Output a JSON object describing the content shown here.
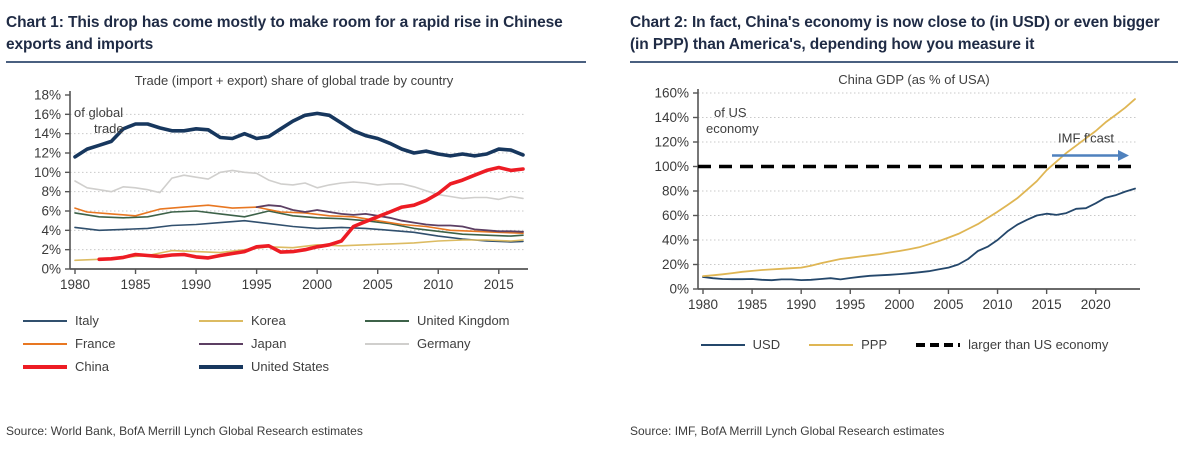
{
  "panels": [
    {
      "heading": "Chart 1: This drop has come mostly to make room for a rapid rise in Chinese exports and imports",
      "source": "Source: World Bank, BofA Merrill Lynch Global Research estimates"
    },
    {
      "heading": "Chart 2: In fact, China's economy is now close to (in USD) or even bigger (in PPP) than America's, depending how you measure it",
      "source": "Source: IMF, BofA Merrill Lynch Global Research estimates"
    }
  ],
  "colors": {
    "heading_text": "#1f2b45",
    "heading_rule": "#4a6080",
    "axis": "#555555",
    "grid": "#c9c9c9",
    "tick_text": "#3a3a3a",
    "chart_text": "#3f3f3f",
    "arrow_blue": "#4f81bd"
  },
  "chart_data": [
    {
      "type": "line",
      "title": "Trade (import + export) share of global trade by country",
      "ylabel_lines": [
        "of global",
        "trade"
      ],
      "ylim": [
        0,
        18
      ],
      "yticks": [
        0,
        2,
        4,
        6,
        8,
        10,
        12,
        14,
        16,
        18
      ],
      "gridlines": [
        2,
        4,
        6,
        8,
        10,
        12,
        14,
        16
      ],
      "ytick_suffix": "%",
      "xlim": [
        1980,
        2017
      ],
      "xticks": [
        1980,
        1985,
        1990,
        1995,
        2000,
        2005,
        2010,
        2015
      ],
      "grid_style": "dotted horizontal",
      "legend_position": "below, 3 columns",
      "series": [
        {
          "name": "Italy",
          "color": "#31506e",
          "width": 1.6,
          "x": [
            1980,
            1982,
            1984,
            1986,
            1988,
            1990,
            1992,
            1994,
            1996,
            1998,
            2000,
            2002,
            2004,
            2006,
            2008,
            2010,
            2012,
            2014,
            2016,
            2017
          ],
          "y": [
            4.3,
            4.0,
            4.1,
            4.2,
            4.5,
            4.6,
            4.8,
            5.0,
            4.7,
            4.4,
            4.2,
            4.3,
            4.2,
            4.0,
            3.8,
            3.4,
            3.1,
            2.9,
            2.8,
            2.85
          ]
        },
        {
          "name": "Korea",
          "color": "#dcbb62",
          "width": 1.6,
          "x": [
            1980,
            1982,
            1984,
            1986,
            1988,
            1990,
            1992,
            1994,
            1996,
            1998,
            2000,
            2002,
            2004,
            2006,
            2008,
            2010,
            2012,
            2014,
            2016,
            2017
          ],
          "y": [
            0.9,
            1.0,
            1.2,
            1.4,
            1.9,
            1.8,
            1.7,
            2.0,
            2.3,
            2.2,
            2.5,
            2.4,
            2.5,
            2.6,
            2.7,
            2.9,
            3.0,
            3.0,
            2.9,
            3.0
          ]
        },
        {
          "name": "United Kingdom",
          "color": "#3d6249",
          "width": 1.6,
          "x": [
            1980,
            1982,
            1984,
            1986,
            1988,
            1990,
            1992,
            1994,
            1996,
            1998,
            2000,
            2002,
            2004,
            2006,
            2008,
            2010,
            2012,
            2014,
            2016,
            2017
          ],
          "y": [
            5.8,
            5.4,
            5.3,
            5.4,
            5.9,
            6.0,
            5.7,
            5.4,
            6.0,
            5.5,
            5.3,
            5.2,
            5.0,
            4.7,
            4.2,
            3.9,
            3.6,
            3.5,
            3.4,
            3.5
          ]
        },
        {
          "name": "France",
          "color": "#e87722",
          "width": 1.6,
          "x": [
            1980,
            1981,
            1983,
            1985,
            1987,
            1989,
            1991,
            1993,
            1995,
            1997,
            1999,
            2001,
            2003,
            2005,
            2007,
            2009,
            2011,
            2013,
            2015,
            2017
          ],
          "y": [
            6.3,
            5.9,
            5.7,
            5.5,
            6.2,
            6.4,
            6.6,
            6.3,
            6.4,
            5.9,
            5.8,
            5.5,
            5.4,
            5.0,
            4.6,
            4.4,
            4.0,
            3.9,
            3.8,
            3.7
          ]
        },
        {
          "name": "Japan",
          "color": "#5c3f63",
          "width": 1.8,
          "x": [
            1995,
            1996,
            1997,
            1998,
            1999,
            2000,
            2001,
            2002,
            2003,
            2004,
            2005,
            2006,
            2007,
            2008,
            2009,
            2010,
            2011,
            2012,
            2013,
            2014,
            2015,
            2016,
            2017
          ],
          "y": [
            6.4,
            6.6,
            6.5,
            6.1,
            5.9,
            6.1,
            5.9,
            5.7,
            5.6,
            5.7,
            5.5,
            5.3,
            5.0,
            4.8,
            4.6,
            4.5,
            4.5,
            4.4,
            4.1,
            4.0,
            3.9,
            3.9,
            3.85
          ]
        },
        {
          "name": "Germany",
          "color": "#d0cfcd",
          "width": 1.6,
          "x": [
            1980,
            1981,
            1982,
            1983,
            1984,
            1985,
            1986,
            1987,
            1988,
            1989,
            1990,
            1991,
            1992,
            1993,
            1994,
            1995,
            1996,
            1997,
            1998,
            1999,
            2000,
            2001,
            2002,
            2003,
            2004,
            2005,
            2006,
            2007,
            2008,
            2009,
            2010,
            2011,
            2012,
            2013,
            2014,
            2015,
            2016,
            2017
          ],
          "y": [
            9.1,
            8.4,
            8.2,
            8.0,
            8.5,
            8.4,
            8.2,
            7.9,
            9.4,
            9.7,
            9.5,
            9.3,
            10.0,
            10.2,
            10.0,
            9.9,
            9.2,
            8.8,
            8.7,
            8.9,
            8.4,
            8.7,
            8.9,
            9.0,
            8.9,
            8.7,
            8.8,
            8.8,
            8.5,
            8.1,
            7.7,
            7.5,
            7.3,
            7.4,
            7.4,
            7.2,
            7.5,
            7.3
          ]
        },
        {
          "name": "China",
          "color": "#ed1c24",
          "width": 3.6,
          "x": [
            1982,
            1983,
            1984,
            1985,
            1986,
            1987,
            1988,
            1989,
            1990,
            1991,
            1992,
            1993,
            1994,
            1995,
            1996,
            1997,
            1998,
            1999,
            2000,
            2001,
            2002,
            2003,
            2004,
            2005,
            2006,
            2007,
            2008,
            2009,
            2010,
            2011,
            2012,
            2013,
            2014,
            2015,
            2016,
            2017
          ],
          "y": [
            1.0,
            1.05,
            1.2,
            1.5,
            1.4,
            1.3,
            1.45,
            1.5,
            1.25,
            1.15,
            1.4,
            1.6,
            1.8,
            2.3,
            2.4,
            1.75,
            1.8,
            2.0,
            2.3,
            2.5,
            2.9,
            4.4,
            4.9,
            5.4,
            5.9,
            6.4,
            6.6,
            7.1,
            7.8,
            8.8,
            9.2,
            9.7,
            10.2,
            10.5,
            10.2,
            10.35
          ]
        },
        {
          "name": "United States",
          "color": "#17375e",
          "width": 3.6,
          "x": [
            1980,
            1981,
            1982,
            1983,
            1984,
            1985,
            1986,
            1987,
            1988,
            1989,
            1990,
            1991,
            1992,
            1993,
            1994,
            1995,
            1996,
            1997,
            1998,
            1999,
            2000,
            2001,
            2002,
            2003,
            2004,
            2005,
            2006,
            2007,
            2008,
            2009,
            2010,
            2011,
            2012,
            2013,
            2014,
            2015,
            2016,
            2017
          ],
          "y": [
            11.6,
            12.4,
            12.8,
            13.2,
            14.5,
            15.0,
            15.0,
            14.6,
            14.3,
            14.3,
            14.5,
            14.4,
            13.6,
            13.5,
            14.0,
            13.5,
            13.7,
            14.5,
            15.3,
            15.9,
            16.1,
            15.9,
            15.1,
            14.3,
            13.8,
            13.5,
            13.0,
            12.4,
            12.0,
            12.2,
            11.9,
            11.7,
            11.9,
            11.7,
            11.9,
            12.4,
            12.3,
            11.8
          ]
        }
      ],
      "legend": {
        "columns": 3,
        "items": [
          {
            "label": "Italy",
            "color": "#31506e",
            "width": 2
          },
          {
            "label": "Korea",
            "color": "#dcbb62",
            "width": 2
          },
          {
            "label": "United Kingdom",
            "color": "#3d6249",
            "width": 2
          },
          {
            "label": "France",
            "color": "#e87722",
            "width": 2
          },
          {
            "label": "Japan",
            "color": "#5c3f63",
            "width": 2
          },
          {
            "label": "Germany",
            "color": "#d0cfcd",
            "width": 2
          },
          {
            "label": "China",
            "color": "#ed1c24",
            "width": 4
          },
          {
            "label": "United States",
            "color": "#17375e",
            "width": 4
          }
        ]
      }
    },
    {
      "type": "line",
      "title": "China GDP (as % of USA)",
      "ylabel_lines": [
        "of US",
        "economy"
      ],
      "ylim": [
        0,
        160
      ],
      "yticks": [
        0,
        20,
        40,
        60,
        80,
        100,
        120,
        140,
        160
      ],
      "gridlines": [
        20,
        40,
        60,
        80,
        120,
        140,
        160
      ],
      "ytick_suffix": "%",
      "xlim": [
        1980,
        2024
      ],
      "xticks": [
        1980,
        1985,
        1990,
        1995,
        2000,
        2005,
        2010,
        2015,
        2020
      ],
      "grid_style": "dotted horizontal",
      "legend_position": "below, inline",
      "reference_line": {
        "y": 100,
        "style": "dashed",
        "color": "#000000",
        "width": 3.5,
        "label": "larger than US economy"
      },
      "annotation": {
        "text": "IMF f'cast",
        "color": "#4f81bd"
      },
      "series": [
        {
          "name": "USD",
          "color": "#24476b",
          "width": 1.8,
          "x": [
            1980,
            1981,
            1982,
            1983,
            1984,
            1985,
            1986,
            1987,
            1988,
            1989,
            1990,
            1991,
            1992,
            1993,
            1994,
            1995,
            1996,
            1997,
            1998,
            1999,
            2000,
            2001,
            2002,
            2003,
            2004,
            2005,
            2006,
            2007,
            2008,
            2009,
            2010,
            2011,
            2012,
            2013,
            2014,
            2015,
            2016,
            2017,
            2018,
            2019,
            2020,
            2021,
            2022,
            2023,
            2024
          ],
          "y": [
            9.8,
            8.8,
            8.2,
            8.0,
            8.0,
            8.2,
            7.5,
            7.2,
            7.8,
            7.8,
            7.3,
            7.5,
            8.2,
            8.8,
            7.8,
            9.0,
            10.0,
            10.8,
            11.2,
            11.6,
            12.2,
            12.8,
            13.6,
            14.5,
            16.0,
            17.5,
            20.0,
            24.5,
            31.0,
            34.5,
            40.0,
            47.0,
            52.5,
            56.5,
            60.0,
            61.5,
            60.5,
            62.0,
            65.5,
            66.0,
            70.0,
            74.5,
            76.5,
            79.5,
            82.0
          ]
        },
        {
          "name": "PPP",
          "color": "#dfb654",
          "width": 1.8,
          "x": [
            1980,
            1981,
            1982,
            1983,
            1984,
            1985,
            1986,
            1987,
            1988,
            1989,
            1990,
            1991,
            1992,
            1993,
            1994,
            1995,
            1996,
            1997,
            1998,
            1999,
            2000,
            2001,
            2002,
            2003,
            2004,
            2005,
            2006,
            2007,
            2008,
            2009,
            2010,
            2011,
            2012,
            2013,
            2014,
            2015,
            2016,
            2017,
            2018,
            2019,
            2020,
            2021,
            2022,
            2023,
            2024
          ],
          "y": [
            10.5,
            11.2,
            12.0,
            13.0,
            14.0,
            14.8,
            15.5,
            16.0,
            16.5,
            17.0,
            17.5,
            19.0,
            21.0,
            22.8,
            24.5,
            25.5,
            26.5,
            27.5,
            28.5,
            29.8,
            31.0,
            32.5,
            34.0,
            36.5,
            39.0,
            42.0,
            45.0,
            49.0,
            53.0,
            58.0,
            63.0,
            68.5,
            74.0,
            81.0,
            88.0,
            97.0,
            104.0,
            111.0,
            117.0,
            123.0,
            129.0,
            136.0,
            142.0,
            148.0,
            155.0
          ]
        }
      ],
      "legend": {
        "columns": 0,
        "items": [
          {
            "label": "USD",
            "color": "#24476b",
            "width": 2
          },
          {
            "label": "PPP",
            "color": "#dfb654",
            "width": 2
          },
          {
            "label": "larger than US economy",
            "color": "#000000",
            "width": 4,
            "dash": "9 5"
          }
        ]
      }
    }
  ]
}
